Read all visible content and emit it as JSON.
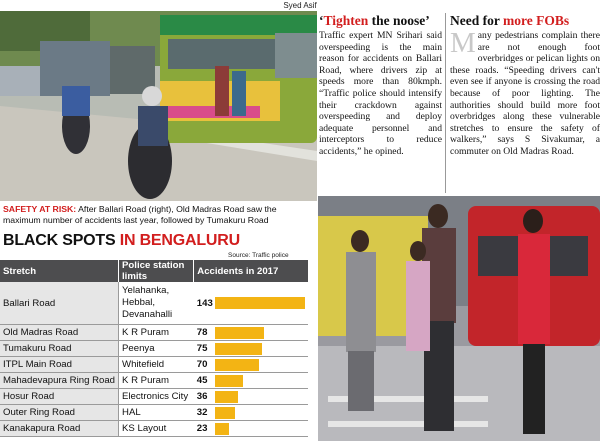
{
  "photo_credit": "Syed Asif",
  "article1": {
    "title_quote_open": "‘",
    "title_red": "Tighten",
    "title_rest": " the noose’",
    "body": "Traffic expert MN Srihari said overspeeding is the main reason for accidents on Ballari Road, where drivers zip at speeds more than 80kmph. “Traffic police should intensify their crackdown against overspeeding and deploy adequate personnel and interceptors to reduce accidents,” he opined."
  },
  "article2": {
    "title_black": "Need for ",
    "title_red": "more FOBs",
    "dropcap": "M",
    "body": "any pedestrians complain there are not enough foot overbridges or pelican lights on these roads. “Speeding drivers can't even see if anyone is crossing the road because of poor lighting. The authorities should build more foot overbridges along these vulnerable stretches to ensure the safety of walkers,” says S Sivakumar, a commuter on Old Madras Road."
  },
  "caption": {
    "lead": "SAFETY AT RISK:",
    "text": " After Ballari Road (right), Old Madras Road saw the maximum number of accidents last year, followed by Tumakuru Road"
  },
  "table": {
    "title_black": "BLACK SPOTS ",
    "title_red": "IN BENGALURU",
    "source": "Source: Traffic police",
    "headers": [
      "Stretch",
      "Police station limits",
      "Accidents in 2017"
    ],
    "bar_color": "#f3b414"
  },
  "chart_data": {
    "type": "bar",
    "categories": [
      "Ballari Road",
      "Old Madras Road",
      "Tumakuru Road",
      "ITPL Main Road",
      "Mahadevapura Ring Road",
      "Hosur Road",
      "Outer Ring Road",
      "Kanakapura Road"
    ],
    "limits": [
      "Yelahanka, Hebbal, Devanahalli",
      "K R Puram",
      "Peenya",
      "Whitefield",
      "K R Puram",
      "Electronics City",
      "HAL",
      "KS Layout"
    ],
    "values": [
      143,
      78,
      75,
      70,
      45,
      36,
      32,
      23
    ],
    "title": "BLACK SPOTS IN BENGALURU",
    "ylabel": "Accidents in 2017"
  }
}
